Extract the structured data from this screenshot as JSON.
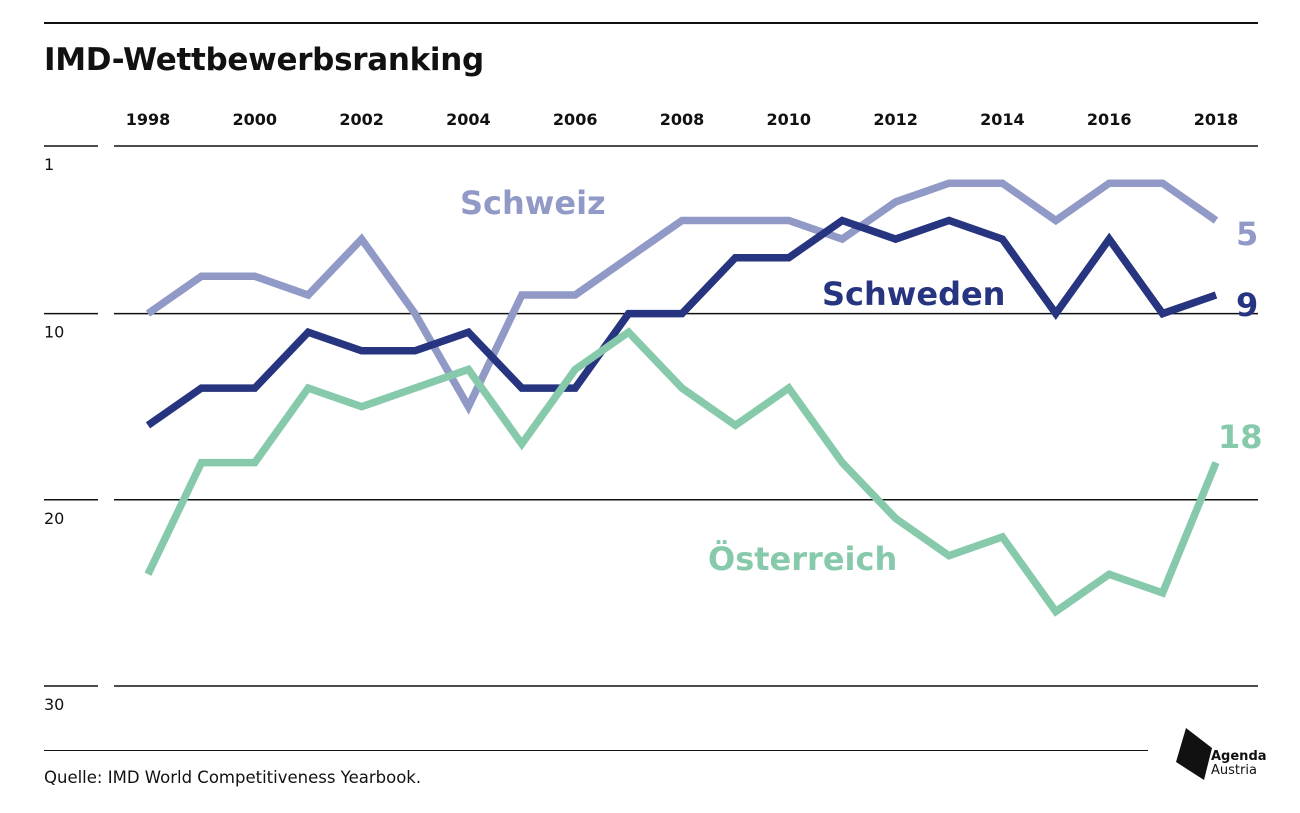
{
  "title": "IMD-Wettbewerbsranking",
  "source": "Quelle: IMD World Competitiveness Yearbook.",
  "logo": {
    "line1": "Agenda",
    "line2": "Austria",
    "icon": "agenda-austria-logo-icon"
  },
  "chart_data": {
    "type": "line",
    "title": "IMD-Wettbewerbsranking",
    "xlabel": "",
    "ylabel": "",
    "x": [
      1998,
      1999,
      2000,
      2001,
      2002,
      2003,
      2004,
      2005,
      2006,
      2007,
      2008,
      2009,
      2010,
      2011,
      2012,
      2013,
      2014,
      2015,
      2016,
      2017,
      2018
    ],
    "x_tick_labels": [
      "1998",
      "2000",
      "2002",
      "2004",
      "2006",
      "2008",
      "2010",
      "2012",
      "2014",
      "2016",
      "2018"
    ],
    "y_tick_labels": [
      "1",
      "10",
      "20",
      "30"
    ],
    "ylim": [
      1,
      30
    ],
    "y_inverted": true,
    "x_axis_position": "top",
    "grid": true,
    "legend": "inline labels",
    "series": [
      {
        "name": "Schweiz",
        "color": "#9199c6",
        "values": [
          10,
          8,
          8,
          9,
          6,
          10,
          15,
          9,
          9,
          7,
          5,
          5,
          5,
          6,
          4,
          3,
          3,
          5,
          3,
          3,
          5
        ],
        "end_label": "5"
      },
      {
        "name": "Schweden",
        "color": "#27347f",
        "values": [
          16,
          14,
          14,
          11,
          12,
          12,
          11,
          14,
          14,
          10,
          10,
          7,
          7,
          5,
          6,
          5,
          6,
          10,
          6,
          10,
          9
        ],
        "end_label": "9"
      },
      {
        "name": "Österreich",
        "color": "#86c9ab",
        "values": [
          24,
          18,
          18,
          14,
          15,
          14,
          13,
          17,
          13,
          11,
          14,
          16,
          14,
          18,
          21,
          23,
          22,
          26,
          24,
          25,
          18
        ],
        "end_label": "18"
      }
    ]
  }
}
